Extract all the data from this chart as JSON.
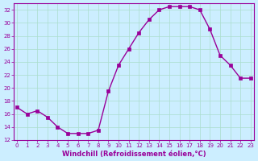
{
  "x": [
    0,
    1,
    2,
    3,
    4,
    5,
    6,
    7,
    8,
    9,
    10,
    11,
    12,
    13,
    14,
    15,
    16,
    17,
    18,
    19,
    20,
    21,
    22,
    23
  ],
  "y": [
    17,
    16,
    16.5,
    15.5,
    14,
    13,
    13,
    13,
    13.5,
    19.5,
    23.5,
    26,
    28.5,
    30.5,
    32,
    32.5,
    32.5,
    32.5,
    32,
    29,
    25,
    23.5,
    21.5,
    21.5
  ],
  "line_color": "#990099",
  "marker_color": "#990099",
  "bg_color": "#cceeff",
  "grid_color": "#aaddcc",
  "xlabel": "Windchill (Refroidissement éolien,°C)",
  "ylim": [
    12,
    33
  ],
  "xlim": [
    -0.3,
    23.3
  ],
  "yticks": [
    12,
    14,
    16,
    18,
    20,
    22,
    24,
    26,
    28,
    30,
    32
  ],
  "xticks": [
    0,
    1,
    2,
    3,
    4,
    5,
    6,
    7,
    8,
    9,
    10,
    11,
    12,
    13,
    14,
    15,
    16,
    17,
    18,
    19,
    20,
    21,
    22,
    23
  ],
  "xlabel_color": "#990099",
  "tick_color": "#990099",
  "axis_color": "#990099"
}
